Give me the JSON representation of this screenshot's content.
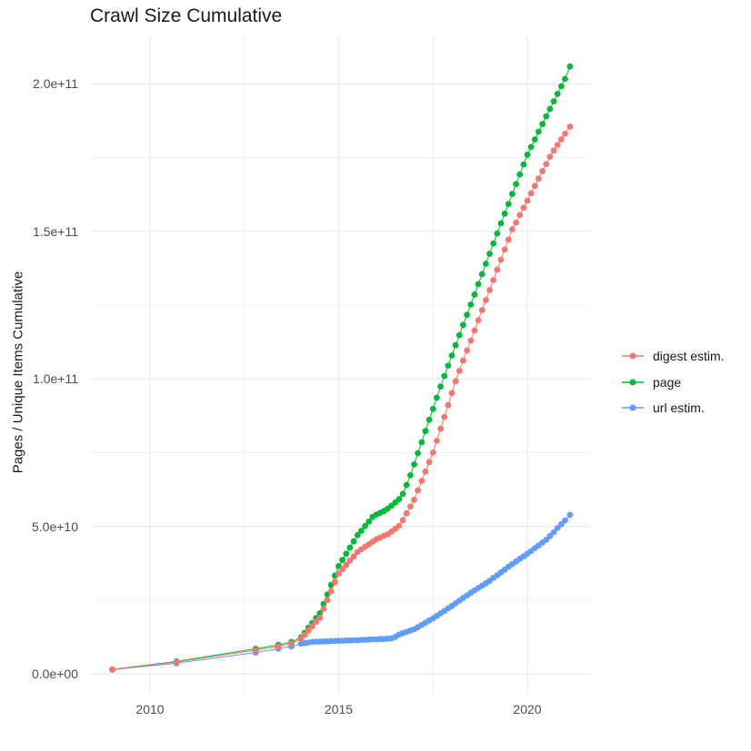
{
  "title": "Crawl Size Cumulative",
  "y_axis_title": "Pages / Unique Items Cumulative",
  "colors": {
    "digest_estim": "#F8766D",
    "page": "#00BA38",
    "url_estim": "#619CFF",
    "gridline": "#EBEBEB",
    "tick_text": "#4D4D4D",
    "title_text": "#1A1A1A",
    "background": "#FFFFFF"
  },
  "legend": {
    "position": "right",
    "items": [
      {
        "label": "digest estim.",
        "color": "#F8766D"
      },
      {
        "label": "page",
        "color": "#00BA38"
      },
      {
        "label": "url estim.",
        "color": "#619CFF"
      }
    ]
  },
  "x_axis": {
    "tick_labels": [
      "2010",
      "2015",
      "2020"
    ],
    "tick_years": [
      2010,
      2015,
      2020
    ],
    "minor_years": [
      2012.5,
      2017.5
    ]
  },
  "y_axis": {
    "tick_labels": [
      "0.0e+00",
      "5.0e+10",
      "1.0e+11",
      "1.5e+11",
      "2.0e+11"
    ],
    "tick_values_e9": [
      0,
      50,
      100,
      150,
      200
    ],
    "minor_values_e9": [
      25,
      75,
      125,
      175
    ]
  },
  "chart_data": {
    "type": "scatter",
    "title": "Crawl Size Cumulative",
    "xlabel": "",
    "ylabel": "Pages / Unique Items Cumulative",
    "value_unit": "1e9 (billions) of pages / unique items, cumulative",
    "xlim": [
      2008.4,
      2021.7
    ],
    "ylim_e9": [
      -7,
      216
    ],
    "grid": true,
    "legend_position": "right",
    "series": [
      {
        "name": "digest estim.",
        "color": "#F8766D",
        "points": [
          [
            2009.0,
            1.45
          ],
          [
            2010.7,
            4.0
          ],
          [
            2012.8,
            8.0
          ],
          [
            2013.4,
            9.3
          ],
          [
            2013.75,
            10.3
          ],
          [
            2014.0,
            11.8
          ],
          [
            2014.1,
            13.2
          ],
          [
            2014.2,
            14.7
          ],
          [
            2014.3,
            16.1
          ],
          [
            2014.4,
            17.6
          ],
          [
            2014.5,
            19.0
          ],
          [
            2014.6,
            22.0
          ],
          [
            2014.7,
            25.0
          ],
          [
            2014.8,
            28.0
          ],
          [
            2014.9,
            31.0
          ],
          [
            2015.0,
            34.0
          ],
          [
            2015.1,
            35.5
          ],
          [
            2015.2,
            36.9
          ],
          [
            2015.3,
            38.4
          ],
          [
            2015.4,
            39.8
          ],
          [
            2015.5,
            41.3
          ],
          [
            2015.6,
            42.2
          ],
          [
            2015.7,
            43.1
          ],
          [
            2015.8,
            43.9
          ],
          [
            2015.9,
            44.8
          ],
          [
            2016.0,
            45.6
          ],
          [
            2016.1,
            46.2
          ],
          [
            2016.2,
            46.8
          ],
          [
            2016.3,
            47.3
          ],
          [
            2016.4,
            48.2
          ],
          [
            2016.5,
            49.2
          ],
          [
            2016.6,
            50.2
          ],
          [
            2016.7,
            52.1
          ],
          [
            2016.8,
            54.4
          ],
          [
            2016.9,
            56.7
          ],
          [
            2017.0,
            59.0
          ],
          [
            2017.1,
            62.2
          ],
          [
            2017.2,
            65.4
          ],
          [
            2017.3,
            68.6
          ],
          [
            2017.4,
            71.8
          ],
          [
            2017.5,
            75.0
          ],
          [
            2017.6,
            79.0
          ],
          [
            2017.7,
            83.1
          ],
          [
            2017.8,
            87.1
          ],
          [
            2017.9,
            91.1
          ],
          [
            2018.0,
            95.2
          ],
          [
            2018.1,
            99.2
          ],
          [
            2018.2,
            102.7
          ],
          [
            2018.3,
            106.2
          ],
          [
            2018.4,
            109.6
          ],
          [
            2018.5,
            113.0
          ],
          [
            2018.6,
            116.4
          ],
          [
            2018.7,
            119.9
          ],
          [
            2018.8,
            123.3
          ],
          [
            2018.9,
            126.7
          ],
          [
            2019.0,
            130.1
          ],
          [
            2019.1,
            133.5
          ],
          [
            2019.2,
            137.0
          ],
          [
            2019.3,
            140.4
          ],
          [
            2019.4,
            143.8
          ],
          [
            2019.5,
            147.2
          ],
          [
            2019.6,
            150.7
          ],
          [
            2019.7,
            153.0
          ],
          [
            2019.8,
            155.5
          ],
          [
            2019.9,
            158.0
          ],
          [
            2020.0,
            160.4
          ],
          [
            2020.1,
            162.9
          ],
          [
            2020.2,
            165.4
          ],
          [
            2020.3,
            167.9
          ],
          [
            2020.4,
            170.4
          ],
          [
            2020.5,
            172.8
          ],
          [
            2020.6,
            175.3
          ],
          [
            2020.7,
            177.4
          ],
          [
            2020.8,
            179.3
          ],
          [
            2020.9,
            181.2
          ],
          [
            2021.0,
            183.1
          ],
          [
            2021.13,
            185.5
          ]
        ]
      },
      {
        "name": "page",
        "color": "#00BA38",
        "points": [
          [
            2009.0,
            1.5
          ],
          [
            2010.7,
            4.2
          ],
          [
            2012.8,
            8.5
          ],
          [
            2013.4,
            9.8
          ],
          [
            2013.75,
            10.8
          ],
          [
            2014.0,
            12.3
          ],
          [
            2014.1,
            13.9
          ],
          [
            2014.2,
            15.6
          ],
          [
            2014.3,
            17.2
          ],
          [
            2014.4,
            18.9
          ],
          [
            2014.5,
            20.5
          ],
          [
            2014.6,
            23.7
          ],
          [
            2014.7,
            26.9
          ],
          [
            2014.8,
            30.1
          ],
          [
            2014.9,
            33.3
          ],
          [
            2015.0,
            36.5
          ],
          [
            2015.1,
            38.6
          ],
          [
            2015.2,
            40.7
          ],
          [
            2015.3,
            42.8
          ],
          [
            2015.4,
            44.9
          ],
          [
            2015.5,
            47.0
          ],
          [
            2015.6,
            48.5
          ],
          [
            2015.7,
            50.1
          ],
          [
            2015.8,
            51.6
          ],
          [
            2015.9,
            53.2
          ],
          [
            2016.0,
            54.0
          ],
          [
            2016.1,
            54.6
          ],
          [
            2016.2,
            55.2
          ],
          [
            2016.3,
            56.0
          ],
          [
            2016.4,
            57.0
          ],
          [
            2016.5,
            58.1
          ],
          [
            2016.6,
            59.2
          ],
          [
            2016.7,
            61.0
          ],
          [
            2016.8,
            64.0
          ],
          [
            2016.9,
            67.3
          ],
          [
            2017.0,
            71.0
          ],
          [
            2017.1,
            74.8
          ],
          [
            2017.2,
            78.5
          ],
          [
            2017.3,
            82.3
          ],
          [
            2017.4,
            86.1
          ],
          [
            2017.5,
            89.8
          ],
          [
            2017.6,
            93.6
          ],
          [
            2017.7,
            97.4
          ],
          [
            2017.8,
            101.0
          ],
          [
            2017.9,
            104.5
          ],
          [
            2018.0,
            107.9
          ],
          [
            2018.1,
            111.4
          ],
          [
            2018.2,
            114.8
          ],
          [
            2018.3,
            118.3
          ],
          [
            2018.4,
            121.7
          ],
          [
            2018.5,
            125.2
          ],
          [
            2018.6,
            128.6
          ],
          [
            2018.7,
            132.1
          ],
          [
            2018.8,
            135.5
          ],
          [
            2018.9,
            139.0
          ],
          [
            2019.0,
            142.4
          ],
          [
            2019.1,
            145.9
          ],
          [
            2019.2,
            149.3
          ],
          [
            2019.3,
            152.7
          ],
          [
            2019.4,
            156.0
          ],
          [
            2019.5,
            159.3
          ],
          [
            2019.6,
            162.7
          ],
          [
            2019.7,
            166.0
          ],
          [
            2019.8,
            169.3
          ],
          [
            2019.9,
            172.7
          ],
          [
            2020.0,
            176.0
          ],
          [
            2020.1,
            178.6
          ],
          [
            2020.2,
            181.2
          ],
          [
            2020.3,
            183.8
          ],
          [
            2020.4,
            186.4
          ],
          [
            2020.5,
            189.0
          ],
          [
            2020.6,
            191.5
          ],
          [
            2020.7,
            194.1
          ],
          [
            2020.8,
            196.6
          ],
          [
            2020.9,
            199.2
          ],
          [
            2021.0,
            201.7
          ],
          [
            2021.13,
            205.9
          ]
        ]
      },
      {
        "name": "url estim.",
        "color": "#619CFF",
        "points": [
          [
            2009.0,
            1.4
          ],
          [
            2010.7,
            3.6
          ],
          [
            2012.8,
            7.2
          ],
          [
            2013.4,
            8.5
          ],
          [
            2013.75,
            9.3
          ],
          [
            2014.0,
            10.2
          ],
          [
            2014.1,
            10.4
          ],
          [
            2014.2,
            10.6
          ],
          [
            2014.3,
            10.8
          ],
          [
            2014.4,
            10.9
          ],
          [
            2014.5,
            10.9
          ],
          [
            2014.6,
            11.0
          ],
          [
            2014.7,
            11.0
          ],
          [
            2014.8,
            11.1
          ],
          [
            2014.9,
            11.1
          ],
          [
            2015.0,
            11.2
          ],
          [
            2015.1,
            11.2
          ],
          [
            2015.2,
            11.3
          ],
          [
            2015.3,
            11.3
          ],
          [
            2015.4,
            11.4
          ],
          [
            2015.5,
            11.4
          ],
          [
            2015.6,
            11.5
          ],
          [
            2015.7,
            11.5
          ],
          [
            2015.8,
            11.6
          ],
          [
            2015.9,
            11.7
          ],
          [
            2016.0,
            11.7
          ],
          [
            2016.1,
            11.8
          ],
          [
            2016.2,
            11.8
          ],
          [
            2016.3,
            11.9
          ],
          [
            2016.4,
            12.0
          ],
          [
            2016.5,
            12.5
          ],
          [
            2016.6,
            13.3
          ],
          [
            2016.7,
            13.8
          ],
          [
            2016.8,
            14.2
          ],
          [
            2016.9,
            14.7
          ],
          [
            2017.0,
            15.1
          ],
          [
            2017.1,
            15.8
          ],
          [
            2017.2,
            16.6
          ],
          [
            2017.3,
            17.3
          ],
          [
            2017.4,
            18.1
          ],
          [
            2017.5,
            18.8
          ],
          [
            2017.6,
            19.6
          ],
          [
            2017.7,
            20.5
          ],
          [
            2017.8,
            21.3
          ],
          [
            2017.9,
            22.2
          ],
          [
            2018.0,
            23.0
          ],
          [
            2018.1,
            23.9
          ],
          [
            2018.2,
            24.8
          ],
          [
            2018.3,
            25.7
          ],
          [
            2018.4,
            26.6
          ],
          [
            2018.5,
            27.5
          ],
          [
            2018.6,
            28.3
          ],
          [
            2018.7,
            29.1
          ],
          [
            2018.8,
            29.9
          ],
          [
            2018.9,
            30.7
          ],
          [
            2019.0,
            31.5
          ],
          [
            2019.1,
            32.5
          ],
          [
            2019.2,
            33.4
          ],
          [
            2019.3,
            34.4
          ],
          [
            2019.4,
            35.3
          ],
          [
            2019.5,
            36.3
          ],
          [
            2019.6,
            37.2
          ],
          [
            2019.7,
            38.1
          ],
          [
            2019.8,
            39.0
          ],
          [
            2019.9,
            39.8
          ],
          [
            2020.0,
            40.7
          ],
          [
            2020.1,
            41.6
          ],
          [
            2020.2,
            42.6
          ],
          [
            2020.3,
            43.5
          ],
          [
            2020.4,
            44.5
          ],
          [
            2020.5,
            45.4
          ],
          [
            2020.6,
            46.7
          ],
          [
            2020.7,
            48.0
          ],
          [
            2020.8,
            49.4
          ],
          [
            2020.9,
            50.7
          ],
          [
            2021.0,
            52.0
          ],
          [
            2021.13,
            53.9
          ]
        ]
      }
    ]
  }
}
